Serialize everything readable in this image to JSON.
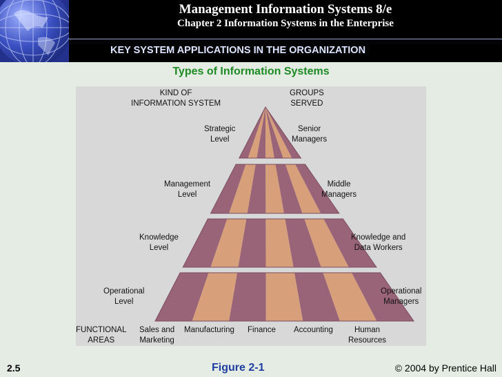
{
  "header": {
    "title": "Management Information Systems 8/e",
    "chapter": "Chapter 2 Information Systems in the Enterprise"
  },
  "section_bar": "KEY SYSTEM APPLICATIONS IN THE ORGANIZATION",
  "subtitle": "Types of Information Systems",
  "figure": {
    "col_left_header": "KIND OF\nINFORMATION SYSTEM",
    "col_right_header": "GROUPS\nSERVED",
    "levels": [
      {
        "kind": "Strategic\nLevel",
        "group": "Senior\nManagers"
      },
      {
        "kind": "Management\nLevel",
        "group": "Middle\nManagers"
      },
      {
        "kind": "Knowledge\nLevel",
        "group": "Knowledge and\nData Workers"
      },
      {
        "kind": "Operational\nLevel",
        "group": "Operational\nManagers"
      }
    ],
    "functional_label": "FUNCTIONAL\nAREAS",
    "functional_areas": [
      "Sales and\nMarketing",
      "Manufacturing",
      "Finance",
      "Accounting",
      "Human\nResources"
    ],
    "colors": {
      "dark_band": "#9a6478",
      "light_band": "#d8a07a",
      "gap": "#e6e6e6",
      "background": "#d8d8d8"
    }
  },
  "footer": {
    "page": "2.5",
    "figure_label": "Figure 2-1",
    "copyright": "© 2004 by Prentice Hall"
  }
}
